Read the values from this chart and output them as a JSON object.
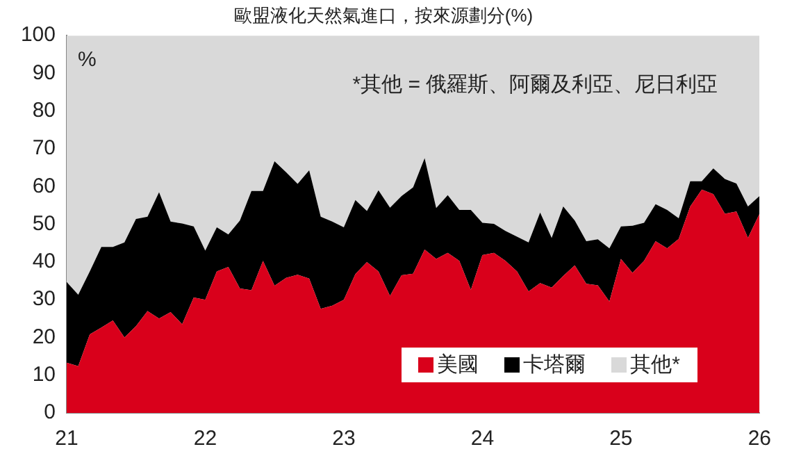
{
  "chart_data": {
    "type": "area",
    "stacked": true,
    "title": "歐盟液化天然氣進口，按來源劃分(%)",
    "ylabel": "%",
    "annotations": [
      "*其他 = 俄羅斯、阿爾及利亞、尼日利亞"
    ],
    "x": [
      "2021-01",
      "2021-02",
      "2021-03",
      "2021-04",
      "2021-05",
      "2021-06",
      "2021-07",
      "2021-08",
      "2021-09",
      "2021-10",
      "2021-11",
      "2021-12",
      "2022-01",
      "2022-02",
      "2022-03",
      "2022-04",
      "2022-05",
      "2022-06",
      "2022-07",
      "2022-08",
      "2022-09",
      "2022-10",
      "2022-11",
      "2022-12",
      "2023-01",
      "2023-02",
      "2023-03",
      "2023-04",
      "2023-05",
      "2023-06",
      "2023-07",
      "2023-08",
      "2023-09",
      "2023-10",
      "2023-11",
      "2023-12",
      "2024-01",
      "2024-02",
      "2024-03",
      "2024-04",
      "2024-05",
      "2024-06",
      "2024-07",
      "2024-08",
      "2024-09",
      "2024-10",
      "2024-11",
      "2024-12",
      "2025-01",
      "2025-02",
      "2025-03",
      "2025-04",
      "2025-05",
      "2025-06",
      "2025-07",
      "2025-08",
      "2025-09",
      "2025-10",
      "2025-11",
      "2025-12",
      "2026-01"
    ],
    "series": [
      {
        "name": "美國",
        "color": "#d9001b",
        "values": [
          13.3,
          12.4,
          20.8,
          22.6,
          24.5,
          20,
          23,
          27,
          25,
          26.7,
          23.5,
          30.6,
          30,
          37.5,
          38.7,
          33,
          32.5,
          40.3,
          33.7,
          35.8,
          36.6,
          35.6,
          27.6,
          28.4,
          30,
          36.8,
          40,
          37.5,
          31,
          36.5,
          36.9,
          43.3,
          40.8,
          42.4,
          40.3,
          32.6,
          41.8,
          42.4,
          40.3,
          37.5,
          32.2,
          34.4,
          33.2,
          36.3,
          39.1,
          34.2,
          33.8,
          29.5,
          40.8,
          37.1,
          40.3,
          45.5,
          43.6,
          46.1,
          54.7,
          59.2,
          58,
          52.8,
          53.4,
          46.4,
          52.8
        ]
      },
      {
        "name": "卡塔爾",
        "color": "#000000",
        "values": [
          21.4,
          18.9,
          16.7,
          21.4,
          19.5,
          25.2,
          28.4,
          25,
          33.5,
          24,
          26.7,
          18.8,
          13,
          11.7,
          8.6,
          18,
          26.3,
          18.5,
          33,
          28,
          24.1,
          28.7,
          24.4,
          22.3,
          19.2,
          19.6,
          13.5,
          21.5,
          23.4,
          21,
          22.9,
          24.2,
          13.5,
          15.3,
          13.5,
          21.2,
          8.6,
          7.7,
          7.9,
          9.2,
          13,
          18.7,
          13.2,
          18.4,
          11.9,
          11.3,
          12.2,
          14.1,
          8.6,
          12.5,
          10.1,
          9.8,
          10.2,
          5.5,
          6.7,
          2.2,
          6.8,
          9.2,
          7.4,
          8.3,
          4.7
        ]
      },
      {
        "name": "其他*",
        "color": "#d9d9d9",
        "values": [
          65.3,
          68.7,
          62.5,
          56,
          56,
          54.8,
          48.6,
          48,
          41.5,
          49.3,
          49.8,
          50.6,
          57,
          50.8,
          52.7,
          49,
          41.2,
          41.2,
          33.3,
          36.2,
          39.3,
          35.7,
          48,
          49.3,
          50.8,
          43.6,
          46.5,
          41,
          45.6,
          42.5,
          40.2,
          32.5,
          45.7,
          42.3,
          46.2,
          46.2,
          49.6,
          49.9,
          51.8,
          53.3,
          54.8,
          46.9,
          53.6,
          45.3,
          49,
          54.5,
          54,
          56.4,
          50.6,
          50.4,
          49.6,
          44.7,
          46.2,
          48.4,
          38.6,
          38.6,
          35.2,
          38,
          39.2,
          45.3,
          42.5
        ]
      }
    ],
    "xlim": [
      "2021-01",
      "2026-01"
    ],
    "xticks": [
      {
        "value": "2021-01",
        "label": "21"
      },
      {
        "value": "2022-01",
        "label": "22"
      },
      {
        "value": "2023-01",
        "label": "23"
      },
      {
        "value": "2024-01",
        "label": "24"
      },
      {
        "value": "2025-01",
        "label": "25"
      },
      {
        "value": "2026-01",
        "label": "26"
      }
    ],
    "ylim": [
      0,
      100
    ],
    "yticks": [
      0,
      10,
      20,
      30,
      40,
      50,
      60,
      70,
      80,
      90,
      100
    ],
    "legend": "bottom right"
  }
}
